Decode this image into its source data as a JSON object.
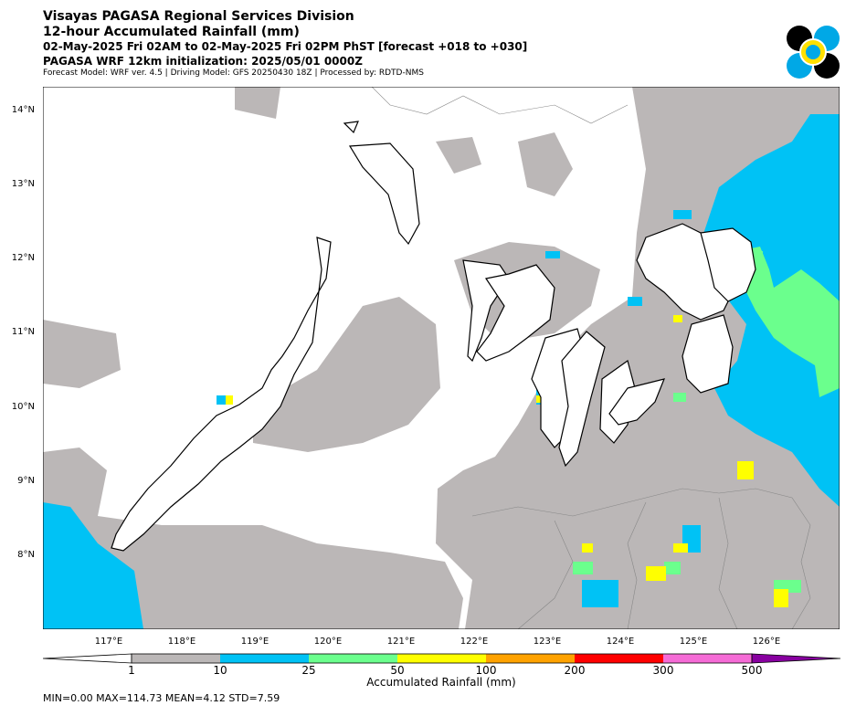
{
  "header": {
    "line1": "Visayas PAGASA Regional Services Division",
    "line2": "12-hour Accumulated Rainfall (mm)",
    "line3": "02-May-2025 Fri 02AM to 02-May-2025 Fri 02PM PhST [forecast +018 to +030]",
    "line4": "PAGASA WRF 12km initialization: 2025/05/01 0000Z",
    "line5": "Forecast Model: WRF ver. 4.5 | Driving Model: GFS 20250430 18Z | Processed by: RDTD-NMS"
  },
  "axes": {
    "lat_labels": [
      "14°N",
      "13°N",
      "12°N",
      "11°N",
      "10°N",
      "9°N",
      "8°N"
    ],
    "lon_labels": [
      "117°E",
      "118°E",
      "119°E",
      "120°E",
      "121°E",
      "122°E",
      "123°E",
      "124°E",
      "125°E",
      "126°E"
    ]
  },
  "colorbar": {
    "title": "Accumulated Rainfall (mm)",
    "labels": [
      "1",
      "10",
      "25",
      "50",
      "100",
      "200",
      "300",
      "500"
    ],
    "colors": [
      "#bbb7b7",
      "#00c2f5",
      "#6bff8d",
      "#ffff00",
      "#ffa200",
      "#ff0000",
      "#f56bd6",
      "#8800a0"
    ]
  },
  "stats": "MIN=0.00   MAX=114.73   MEAN=4.12   STD=7.59"
}
